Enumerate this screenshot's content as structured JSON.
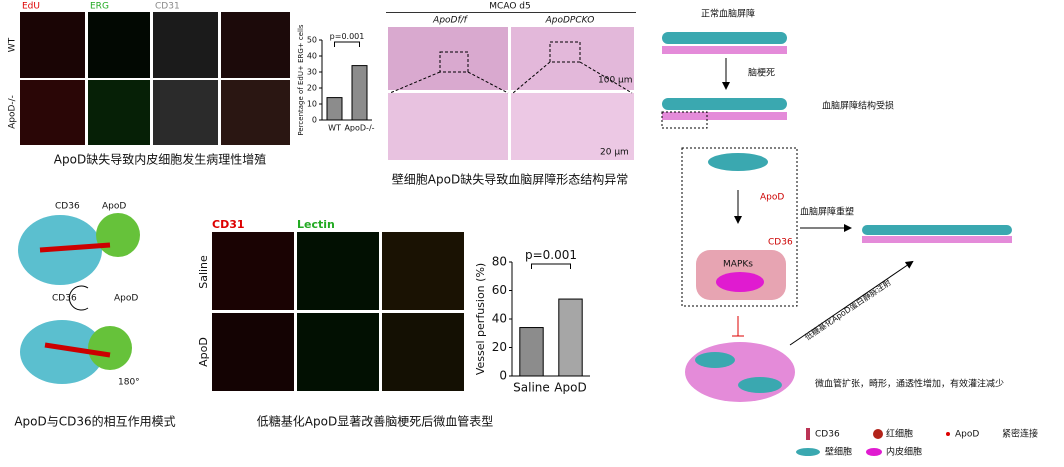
{
  "panels": [
    {
      "channel_labels": [
        "EdU",
        "ERG",
        "CD31"
      ],
      "row_labels": [
        "WT",
        "ApoD-/-"
      ],
      "chart": {
        "type": "bar",
        "ylabel": "Percentage of EdU+ ERG+ cells",
        "categories": [
          "WT",
          "ApoD-/-"
        ],
        "values": [
          14,
          34
        ],
        "colors": [
          "#8c8c8c",
          "#8c8c8c"
        ],
        "ylim": [
          0,
          50
        ],
        "yticks": [
          0,
          10,
          20,
          30,
          40,
          50
        ],
        "annotation": "p=0.001"
      },
      "caption": "ApoD缺失导致内皮细胞发生病理性增殖"
    },
    {
      "title": "MCAO d5",
      "column_labels": [
        "ApoDf/f",
        "ApoDPCKO"
      ],
      "scale_labels": [
        "100 μm",
        "20 μm"
      ],
      "caption": "壁细胞ApoD缺失导致血脑屏障形态结构异常"
    },
    {
      "labels": [
        "CD36",
        "ApoD",
        "CD36",
        "ApoD",
        "180°"
      ],
      "caption": "ApoD与CD36的相互作用模式"
    },
    {
      "channel_labels": [
        "CD31",
        "Lectin"
      ],
      "row_labels": [
        "Saline",
        "ApoD"
      ],
      "chart": {
        "type": "bar",
        "ylabel": "Vessel perfusion (%)",
        "categories": [
          "Saline",
          "ApoD"
        ],
        "values": [
          34,
          54
        ],
        "colors": [
          "#8c8c8c",
          "#a6a6a6"
        ],
        "ylim": [
          0,
          80
        ],
        "yticks": [
          0,
          20,
          40,
          60,
          80
        ],
        "annotation": "p=0.001"
      },
      "caption": "低糖基化ApoD显著改善脑梗死后微血管表型"
    }
  ],
  "diagram": {
    "steps": [
      "正常血脑屏障",
      "脑梗死",
      "血脑屏障结构受损",
      "ApoD",
      "CD36",
      "MAPKs",
      "血脑屏障重塑",
      "低糖基化ApoD蛋白静脉注射",
      "微血管扩张，畸形，通透性增加，有效灌注减少"
    ],
    "legend": [
      "CD36",
      "红细胞",
      "ApoD",
      "紧密连接",
      "壁细胞",
      "内皮细胞"
    ]
  }
}
